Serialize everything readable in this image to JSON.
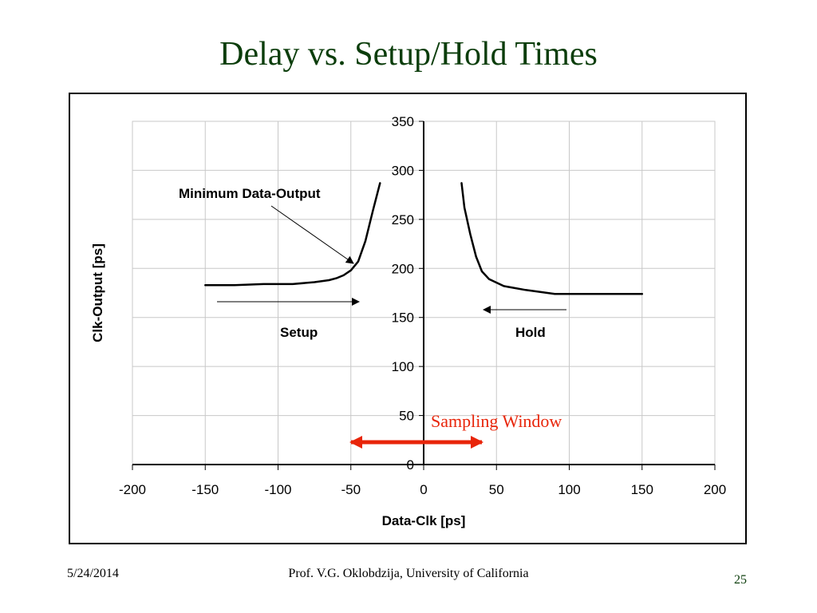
{
  "slide": {
    "title": "Delay vs. Setup/Hold Times",
    "footer_date": "5/24/2014",
    "footer_author": "Prof. V.G. Oklobdzija, University of California",
    "page_number": "25",
    "title_color": "#0b3d0b",
    "accent_color": "#e8250a"
  },
  "chart_data": {
    "type": "line",
    "xlabel": "Data-Clk [ps]",
    "ylabel": "Clk-Output [ps]",
    "xlim": [
      -200,
      200
    ],
    "ylim": [
      0,
      350
    ],
    "x_ticks": [
      -200,
      -150,
      -100,
      -50,
      0,
      50,
      100,
      150,
      200
    ],
    "y_ticks": [
      0,
      50,
      100,
      150,
      200,
      250,
      300,
      350
    ],
    "grid": true,
    "series": [
      {
        "x": [
          -150,
          -130,
          -110,
          -90,
          -75,
          -65,
          -60,
          -55,
          -50,
          -45,
          -40,
          -35,
          -30
        ],
        "y": [
          183,
          183,
          184,
          184,
          186,
          188,
          190,
          193,
          198,
          207,
          228,
          258,
          287
        ]
      },
      {
        "x": [
          26,
          28,
          32,
          36,
          40,
          45,
          55,
          70,
          90,
          150
        ],
        "y": [
          287,
          262,
          235,
          212,
          197,
          189,
          182,
          178,
          174,
          174
        ]
      }
    ],
    "annotations": {
      "min_data_output": "Minimum Data-Output",
      "setup": "Setup",
      "hold": "Hold",
      "sampling_window": "Sampling Window"
    }
  }
}
